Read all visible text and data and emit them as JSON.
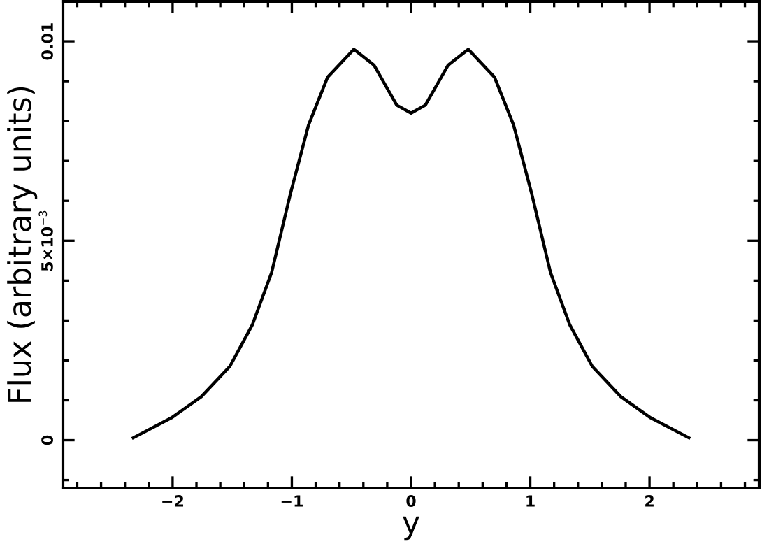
{
  "chart_data": {
    "type": "line",
    "xlabel": "y",
    "ylabel": "Flux (arbitrary units)",
    "x": [
      -2.33,
      -2.01,
      -1.76,
      -1.52,
      -1.33,
      -1.17,
      -1.01,
      -0.86,
      -0.7,
      -0.48,
      -0.31,
      -0.12,
      0,
      0.12,
      0.31,
      0.48,
      0.7,
      0.86,
      1.01,
      1.17,
      1.33,
      1.52,
      1.76,
      2.01,
      2.33
    ],
    "series": [
      {
        "color": "#000000",
        "values": [
          6e-05,
          0.00056,
          0.00109,
          0.00185,
          0.0029,
          0.0042,
          0.0062,
          0.0079,
          0.0091,
          0.0098,
          0.0094,
          0.0084,
          0.0082,
          0.0084,
          0.0094,
          0.0098,
          0.0091,
          0.0079,
          0.0062,
          0.0042,
          0.0029,
          0.00185,
          0.00109,
          0.00056,
          6e-05
        ]
      }
    ],
    "xlim": [
      -2.92,
      2.92
    ],
    "xticks": [
      -2,
      -1,
      0,
      1,
      2
    ],
    "ylim": [
      -0.0012,
      0.011
    ],
    "yticks": [
      0,
      {
        "value": 0.005,
        "label": "5×10$^{−3}$"
      },
      0.01
    ],
    "grid": false,
    "legend": false,
    "marker": "none",
    "line_style": "solid"
  }
}
